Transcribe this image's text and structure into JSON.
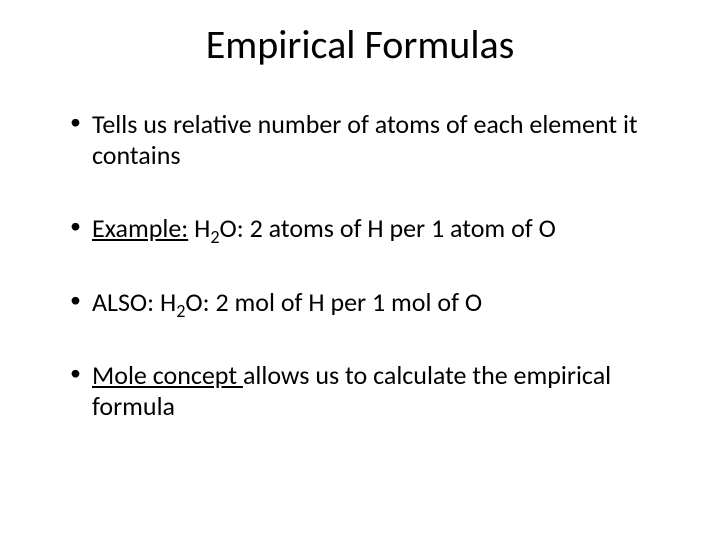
{
  "slide": {
    "title": "Empirical Formulas",
    "title_fontsize": 40,
    "body_fontsize": 26,
    "text_color": "#000000",
    "background_color": "#ffffff",
    "bullets": [
      {
        "text_pre": "Tells us relative number of atoms of each element it contains",
        "underline_first_word": false
      },
      {
        "prefix": "Example: ",
        "formula_pre": "H",
        "formula_sub": "2",
        "formula_post": "O",
        "suffix": ": 2 atoms of H per 1 atom of O",
        "underline_first_word": true,
        "underline_text": "Example:"
      },
      {
        "prefix": "ALSO: ",
        "formula_pre": "H",
        "formula_sub": "2",
        "formula_post": "O",
        "suffix": ": 2 mol of H per 1 mol of O",
        "underline_first_word": false
      },
      {
        "underline_text": "Mole concept ",
        "suffix": "allows us to calculate the empirical formula",
        "underline_first_word": true
      }
    ]
  }
}
